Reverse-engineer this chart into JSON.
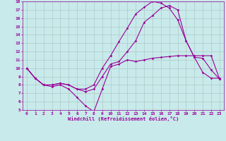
{
  "bg_color": "#c8eaea",
  "grid_color": "#b0c8c8",
  "line_color": "#990099",
  "xlabel": "Windchill (Refroidissement éolien,°C)",
  "xlim": [
    -0.5,
    23.5
  ],
  "ylim": [
    5,
    18
  ],
  "xticks": [
    0,
    1,
    2,
    3,
    4,
    5,
    6,
    7,
    8,
    9,
    10,
    11,
    12,
    13,
    14,
    15,
    16,
    17,
    18,
    19,
    20,
    21,
    22,
    23
  ],
  "yticks": [
    5,
    6,
    7,
    8,
    9,
    10,
    11,
    12,
    13,
    14,
    15,
    16,
    17,
    18
  ],
  "line1_x": [
    0,
    1,
    2,
    3,
    4,
    5,
    6,
    7,
    8,
    9,
    10,
    11,
    12,
    13,
    14,
    15,
    16,
    17,
    18,
    19,
    20,
    21,
    22,
    23
  ],
  "line1_y": [
    10,
    8.8,
    8.0,
    7.8,
    8.0,
    7.5,
    6.5,
    5.5,
    4.8,
    7.5,
    10.2,
    10.5,
    11.0,
    10.8,
    11.0,
    11.2,
    11.3,
    11.4,
    11.5,
    11.5,
    11.5,
    11.5,
    11.5,
    8.7
  ],
  "line2_x": [
    0,
    1,
    2,
    3,
    4,
    5,
    6,
    7,
    8,
    9,
    10,
    11,
    12,
    13,
    14,
    15,
    16,
    17,
    18,
    19,
    20,
    21,
    22,
    23
  ],
  "line2_y": [
    10,
    8.8,
    8.0,
    8.0,
    8.2,
    8.0,
    7.5,
    7.2,
    7.5,
    9.0,
    10.5,
    10.8,
    12.0,
    13.3,
    15.5,
    16.3,
    17.2,
    17.5,
    17.0,
    13.3,
    11.3,
    9.5,
    8.8,
    8.8
  ],
  "line3_x": [
    0,
    1,
    2,
    3,
    4,
    5,
    6,
    7,
    8,
    9,
    10,
    11,
    12,
    13,
    14,
    15,
    16,
    17,
    18,
    19,
    20,
    21,
    22,
    23
  ],
  "line3_y": [
    10,
    8.8,
    8.0,
    8.0,
    8.2,
    8.0,
    7.5,
    7.5,
    8.0,
    10.0,
    11.5,
    13.2,
    14.8,
    16.5,
    17.3,
    18.0,
    17.8,
    17.2,
    15.8,
    13.3,
    11.3,
    11.2,
    9.8,
    8.7
  ],
  "marker": "D",
  "markersize": 1.8,
  "linewidth": 0.8
}
